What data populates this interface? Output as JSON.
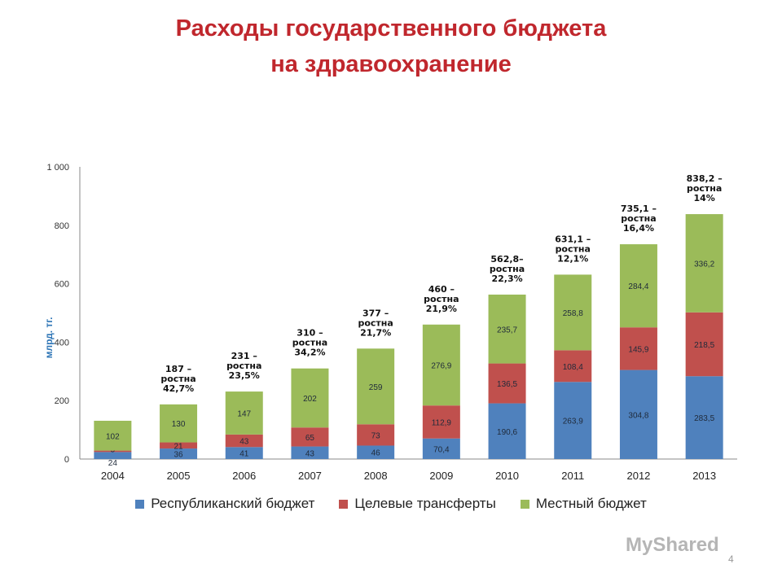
{
  "title_line1": "Расходы государственного бюджета",
  "title_line2": "на здравоохранение",
  "chart_data": {
    "type": "bar",
    "stacked": true,
    "categories": [
      "2004",
      "2005",
      "2006",
      "2007",
      "2008",
      "2009",
      "2010",
      "2011",
      "2012",
      "2013"
    ],
    "series": [
      {
        "name": "Республиканский бюджет",
        "color": "#4f81bd",
        "values": [
          24,
          36,
          41,
          43,
          46,
          70.4,
          190.6,
          263.9,
          304.8,
          283.5
        ],
        "labels": [
          "24",
          "36",
          "41",
          "43",
          "46",
          "70,4",
          "190,6",
          "263,9",
          "304,8",
          "283,5"
        ]
      },
      {
        "name": "Целевые трансферты",
        "color": "#c0504d",
        "values": [
          5,
          21,
          43,
          65,
          73,
          112.9,
          136.5,
          108.4,
          145.9,
          218.5
        ],
        "labels": [
          "5",
          "21",
          "43",
          "65",
          "73",
          "112,9",
          "136,5",
          "108,4",
          "145,9",
          "218,5"
        ]
      },
      {
        "name": "Местный бюджет",
        "color": "#9bbb59",
        "values": [
          102,
          130,
          147,
          202,
          259,
          276.9,
          235.7,
          258.8,
          284.4,
          336.2
        ],
        "labels": [
          "102",
          "130",
          "147",
          "202",
          "259",
          "276,9",
          "235,7",
          "258,8",
          "284,4",
          "336,2"
        ]
      }
    ],
    "annotations": [
      null,
      [
        "187 –",
        "ростна",
        "42,7%"
      ],
      [
        "231 –",
        "ростна",
        "23,5%"
      ],
      [
        "310 –",
        "ростна",
        "34,2%"
      ],
      [
        "377 –",
        "ростна",
        "21,7%"
      ],
      [
        "460 –",
        "ростна",
        "21,9%"
      ],
      [
        "562,8–",
        "ростна",
        "22,3%"
      ],
      [
        "631,1 –",
        "ростна",
        "12,1%"
      ],
      [
        "735,1 –",
        "ростна",
        "16,4%"
      ],
      [
        "838,2 –",
        "ростна",
        "14%"
      ]
    ],
    "ylabel": "млрд. тг.",
    "ylim": [
      0,
      1000
    ],
    "yticks": [
      0,
      200,
      400,
      600,
      800,
      1000
    ],
    "ytick_labels": [
      "0",
      "200",
      "400",
      "600",
      "800",
      "1 000"
    ],
    "grid": false,
    "legend": "bottom"
  },
  "watermark": "MyShared",
  "page_number": "4"
}
